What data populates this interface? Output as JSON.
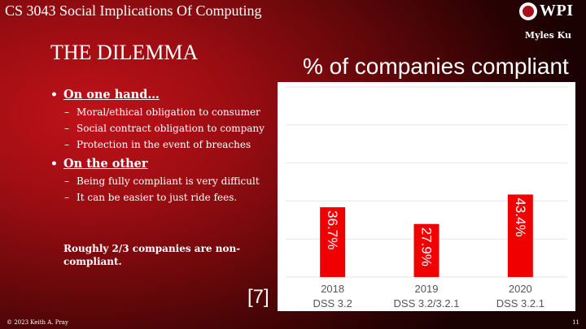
{
  "header": {
    "course_title": "CS 3043 Social Implications Of Computing",
    "logo_text": "WPI"
  },
  "author": "Myles Ku",
  "slide_title": "THE DILEMMA",
  "bullets": {
    "one_hand": {
      "heading": "On one hand…",
      "items": [
        "Moral/ethical obligation to consumer",
        "Social contract obligation to company",
        "Protection in the event of breaches"
      ]
    },
    "other": {
      "heading": "On the other",
      "items": [
        "Being fully compliant is very difficult",
        "It can be easier to just ride fees."
      ]
    }
  },
  "summary": "Roughly 2/3 companies are non-compliant.",
  "reference": "[7]",
  "footer": {
    "copyright": "© 2023 Keith A. Pray",
    "page_number": "11"
  },
  "colors": {
    "bar": "#f00000",
    "gridline": "#e6e6e6",
    "axis_text": "#555555"
  },
  "chart_data": {
    "type": "bar",
    "title": "% of companies compliant",
    "categories": [
      "2018",
      "2019",
      "2020"
    ],
    "category_sublabels": [
      "DSS 3.2",
      "DSS 3.2/3.2.1",
      "DSS 3.2.1"
    ],
    "values": [
      36.7,
      27.9,
      43.4
    ],
    "data_labels": [
      "36.7%",
      "27.9%",
      "43.4%"
    ],
    "ylim": [
      0,
      100
    ],
    "grid": true,
    "xlabel": "",
    "ylabel": ""
  }
}
